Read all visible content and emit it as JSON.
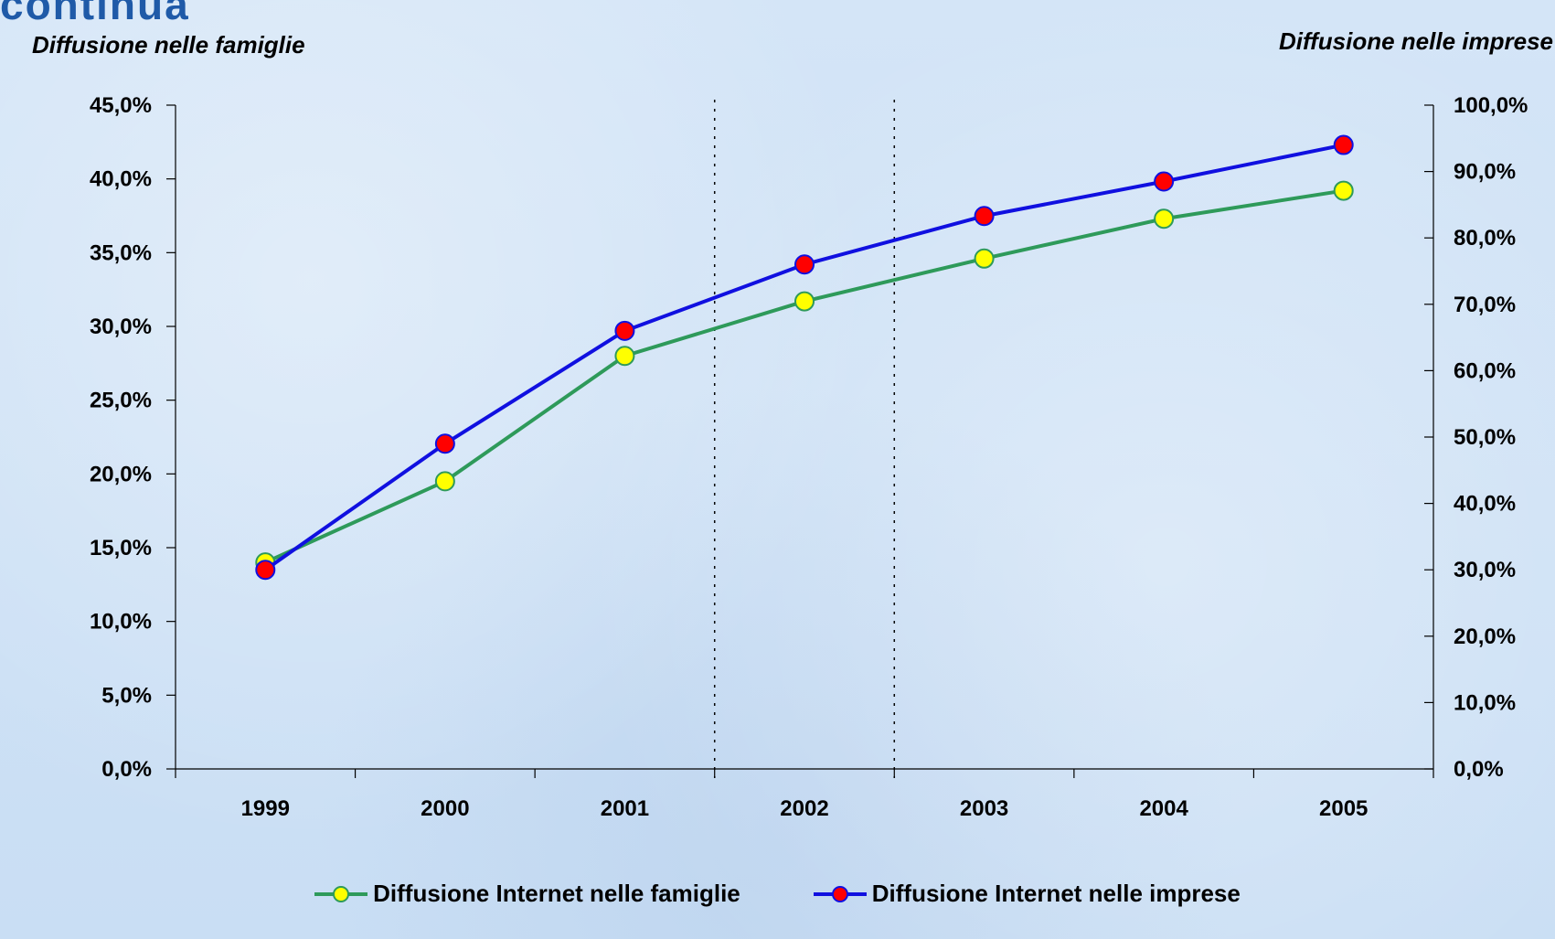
{
  "partial_heading": "continua",
  "left_axis_title": "Diffusione nelle famiglie",
  "right_axis_title": "Diffusione nelle imprese",
  "colors": {
    "famiglie_line": "#2e9a5a",
    "famiglie_marker": "#ffff00",
    "imprese_line": "#1010e0",
    "imprese_marker": "#ff0000"
  },
  "chart_data": {
    "type": "line",
    "categories": [
      "1999",
      "2000",
      "2001",
      "2002",
      "2003",
      "2004",
      "2005"
    ],
    "series": [
      {
        "name": "Diffusione Internet nelle famiglie",
        "axis": "left",
        "values": [
          14.0,
          19.5,
          28.0,
          31.7,
          34.6,
          37.3,
          39.2
        ]
      },
      {
        "name": "Diffusione Internet nelle imprese",
        "axis": "right",
        "values": [
          30.0,
          49.0,
          66.0,
          76.0,
          83.3,
          88.5,
          94.0
        ]
      }
    ],
    "y_left": {
      "ylim": [
        0,
        45
      ],
      "ticks": [
        "0,0%",
        "5,0%",
        "10,0%",
        "15,0%",
        "20,0%",
        "25,0%",
        "30,0%",
        "35,0%",
        "40,0%",
        "45,0%"
      ]
    },
    "y_right": {
      "ylim": [
        0,
        100
      ],
      "ticks": [
        "0,0%",
        "10,0%",
        "20,0%",
        "30,0%",
        "40,0%",
        "50,0%",
        "60,0%",
        "70,0%",
        "80,0%",
        "90,0%",
        "100,0%"
      ]
    },
    "grid": false,
    "vertical_dotted_lines_after": [
      "2001",
      "2002"
    ],
    "legend_position": "bottom"
  }
}
